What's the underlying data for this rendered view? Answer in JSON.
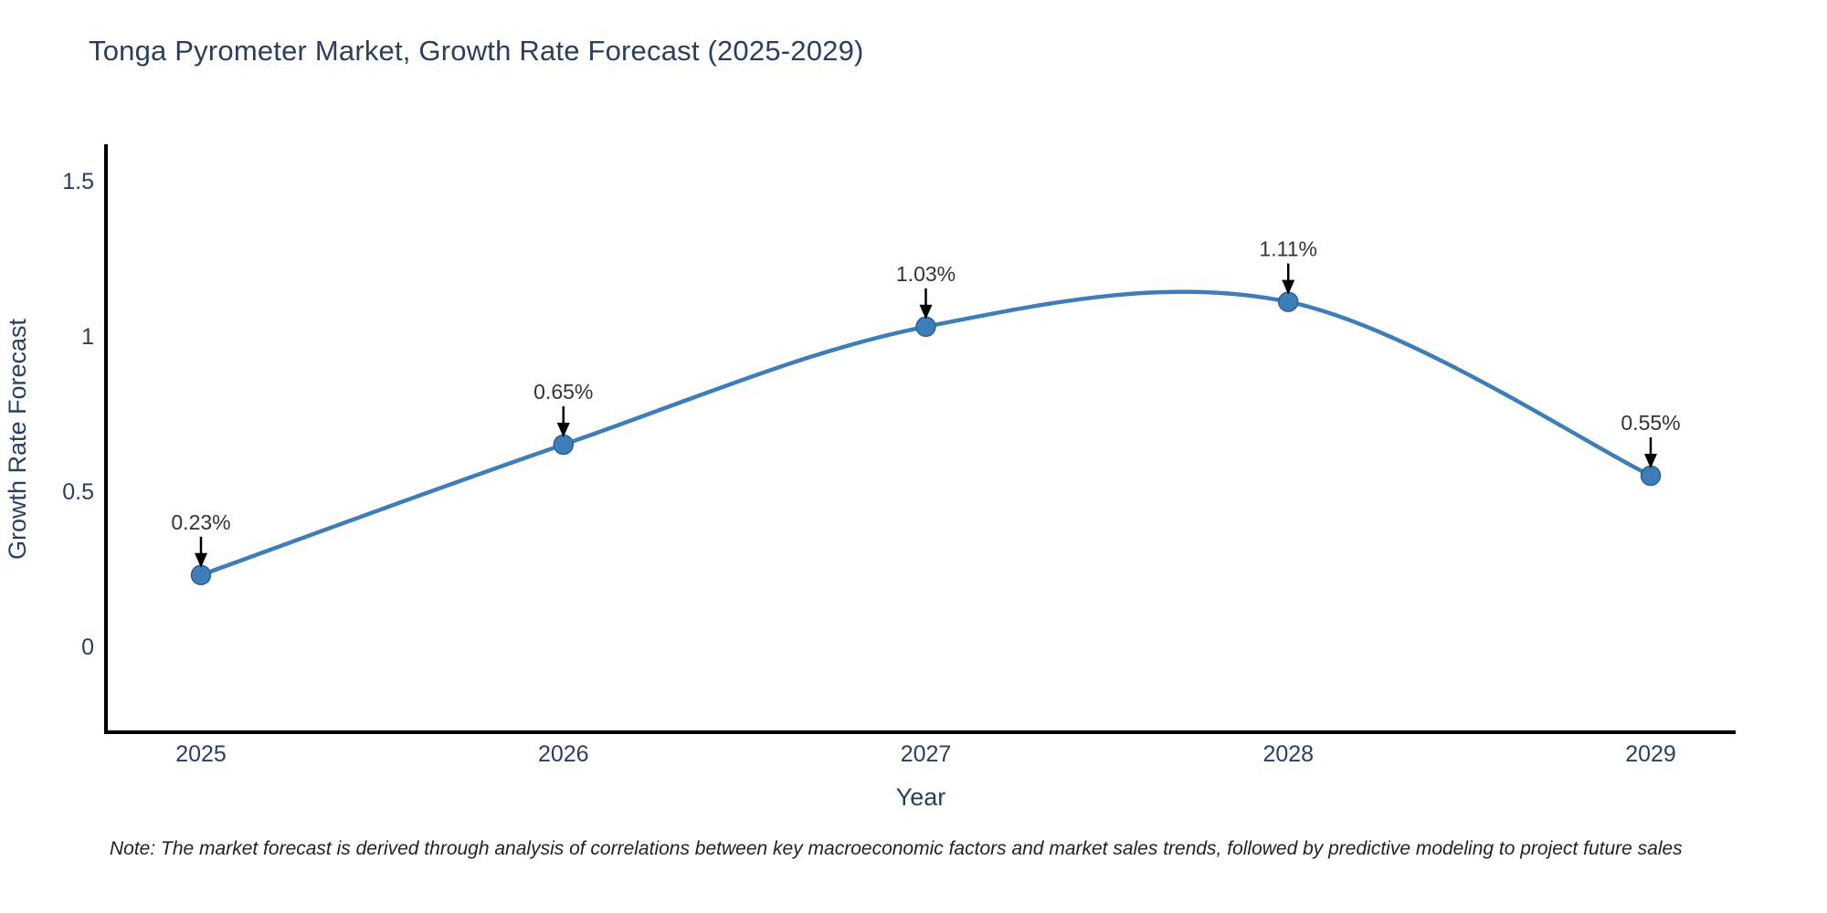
{
  "chart_data": {
    "type": "line",
    "title": "Tonga Pyrometer Market, Growth Rate Forecast (2025-2029)",
    "xlabel": "Year",
    "ylabel": "Growth Rate Forecast",
    "categories": [
      "2025",
      "2026",
      "2027",
      "2028",
      "2029"
    ],
    "values": [
      0.23,
      0.65,
      1.03,
      1.11,
      0.55
    ],
    "point_labels": [
      "0.23%",
      "0.65%",
      "1.03%",
      "1.11%",
      "0.55%"
    ],
    "ytick_labels": [
      "0",
      "0.5",
      "1",
      "1.5"
    ],
    "ytick_values": [
      0,
      0.5,
      1,
      1.5
    ],
    "ylim": [
      -0.28,
      1.61
    ],
    "line_shape": "spline",
    "grid": false,
    "legend": "none",
    "colors": {
      "line": "#3d7db8",
      "marker": "#3d7db8",
      "marker_edge": "#2a6093",
      "axis": "#000000",
      "tick_text": "#2a3f5f",
      "title_text": "#2a3f5f",
      "annotation_text": "#333333",
      "arrow": "#000000",
      "background": "#ffffff"
    }
  },
  "note": {
    "text": "Note: The market forecast is derived through analysis of correlations between key macroeconomic factors and market sales trends, followed by predictive modeling to project future sales"
  }
}
